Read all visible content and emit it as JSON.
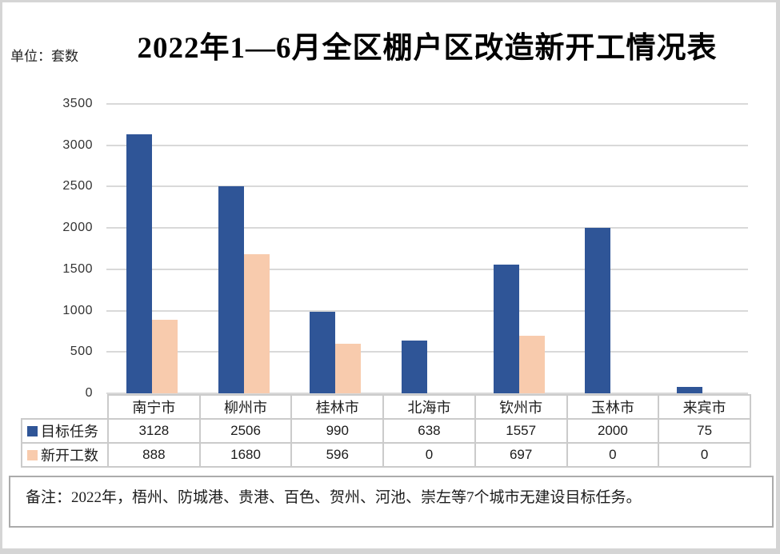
{
  "header": {
    "unit_label": "单位：套数",
    "title": "2022年1—6月全区棚户区改造新开工情况表"
  },
  "note": "备注：2022年，梧州、防城港、贵港、百色、贺州、河池、崇左等7个城市无建设目标任务。",
  "chart_data": {
    "type": "bar",
    "title": "2022年1—6月全区棚户区改造新开工情况表",
    "unit": "套数",
    "categories": [
      "南宁市",
      "柳州市",
      "桂林市",
      "北海市",
      "钦州市",
      "玉林市",
      "来宾市"
    ],
    "series": [
      {
        "name": "目标任务",
        "color": "#2F5597",
        "values": [
          3128,
          2506,
          990,
          638,
          1557,
          2000,
          75
        ]
      },
      {
        "name": "新开工数",
        "color": "#F8CBAD",
        "values": [
          888,
          1680,
          596,
          0,
          697,
          0,
          0
        ]
      }
    ],
    "ylim": [
      0,
      3500
    ],
    "yticks": [
      3500,
      3000,
      2500,
      2000,
      1500,
      1000,
      500,
      0
    ],
    "grid": true,
    "legend_position": "data-table-left",
    "data_table_shown": true
  },
  "colors": {
    "series_target": "#2F5597",
    "series_started": "#F8CBAD",
    "gridline": "#D9D9D9",
    "table_border": "#CBCBCB",
    "note_border": "#ABABAB",
    "frame_border": "#D5D5D5"
  }
}
